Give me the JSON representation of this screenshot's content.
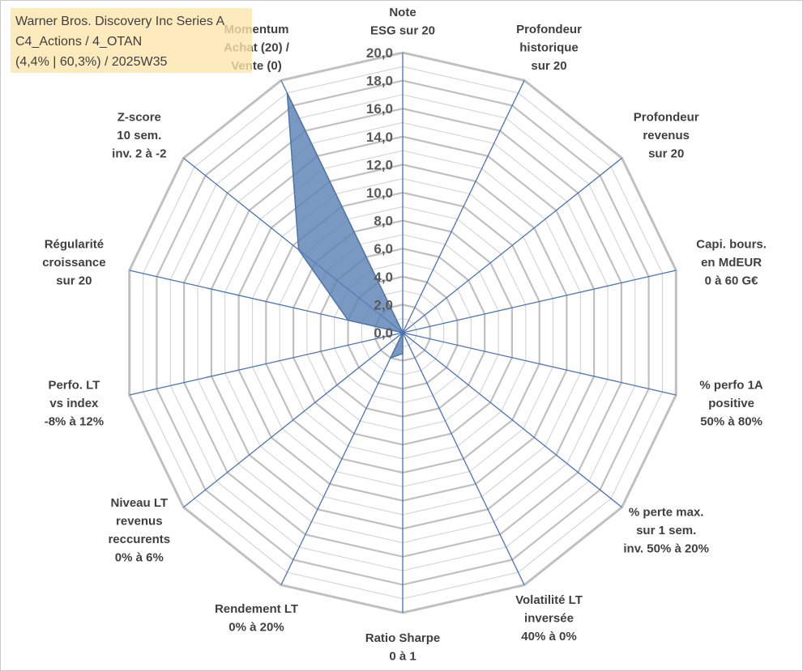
{
  "chart_data": {
    "type": "radar",
    "title_lines": [
      "Warner Bros. Discovery Inc Series A",
      "C4_Actions / 4_OTAN",
      "(4,4% | 60,3%) / 2025W35"
    ],
    "radial_range": [
      0,
      20
    ],
    "ticks": [
      "0,0",
      "2,0",
      "4,0",
      "6,0",
      "8,0",
      "10,0",
      "12,0",
      "14,0",
      "16,0",
      "18,0",
      "20,0"
    ],
    "grid": true,
    "axes": [
      {
        "lines": [
          "Note",
          "ESG sur 20"
        ]
      },
      {
        "lines": [
          "Profondeur",
          "historique",
          "sur 20"
        ]
      },
      {
        "lines": [
          "Profondeur",
          "revenus",
          "sur 20"
        ]
      },
      {
        "lines": [
          "Capi. bours.",
          "en MdEUR",
          "0 à 60 G€"
        ]
      },
      {
        "lines": [
          "% perfo 1A",
          "positive",
          "50% à 80%"
        ]
      },
      {
        "lines": [
          "% perte max.",
          "sur 1 sem.",
          "inv. 50% à 20%"
        ]
      },
      {
        "lines": [
          "Volatilité LT",
          "inversée",
          "40% à 0%"
        ]
      },
      {
        "lines": [
          "Ratio Sharpe",
          "0 à 1"
        ]
      },
      {
        "lines": [
          "Rendement LT",
          "0% à 20%"
        ]
      },
      {
        "lines": [
          "Niveau LT",
          "revenus",
          "reccurents",
          "0% à 6%"
        ]
      },
      {
        "lines": [
          "Perfo. LT",
          "vs index",
          "-8% à 12%"
        ]
      },
      {
        "lines": [
          "Régularité",
          "croissance",
          "sur 20"
        ]
      },
      {
        "lines": [
          "Z-score",
          "10 sem.",
          "inv. 2 à -2"
        ]
      },
      {
        "lines": [
          "Momentum",
          "Achat (20) /",
          "Vente (0)"
        ]
      }
    ],
    "series": [
      {
        "values": [
          0,
          0,
          0,
          0,
          0,
          0,
          0,
          1.5,
          2.0,
          0,
          0,
          4.0,
          9.5,
          19.0
        ]
      }
    ],
    "colors": {
      "fill": "#5b83b5",
      "fill_opacity": 0.82,
      "stroke": "#4f75a6",
      "grid": "#c0c0c0",
      "spoke": "#4a72b8",
      "title_bg": "#fce4aa"
    }
  }
}
